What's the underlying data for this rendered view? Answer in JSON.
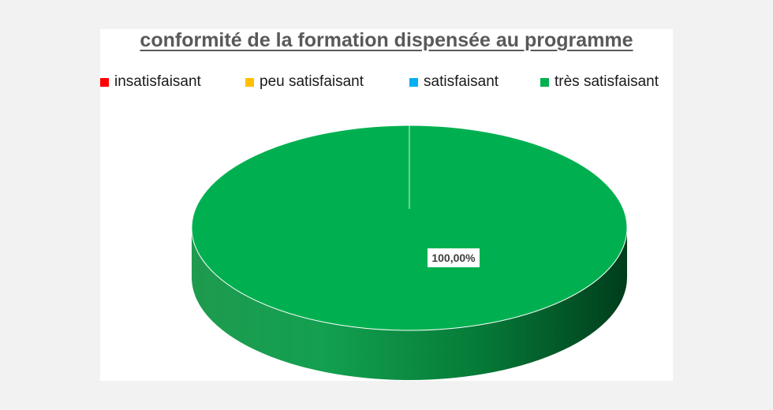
{
  "chart_data": {
    "type": "pie",
    "title": "conformité de la formation dispensée au programme",
    "legend_position": "top",
    "categories": [
      "insatisfaisant",
      "peu satisfaisant",
      "satisfaisant",
      "très satisfaisant"
    ],
    "values": [
      0,
      0,
      0,
      1.0
    ],
    "colors": [
      "#ff0000",
      "#ffc000",
      "#00b0f0",
      "#00b050"
    ],
    "data_labels": [
      "",
      "",
      "",
      "100,00%"
    ],
    "style": "3d"
  }
}
